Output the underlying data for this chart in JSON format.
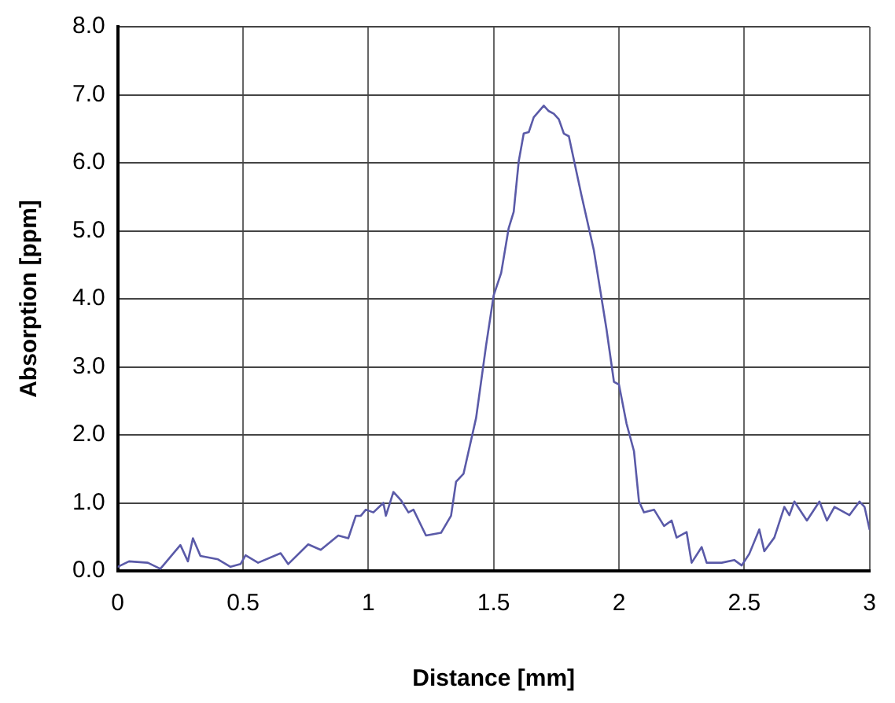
{
  "chart_data": {
    "type": "line",
    "xlabel": "Distance [mm]",
    "ylabel": "Absorption [ppm]",
    "xlim": [
      0,
      3
    ],
    "xticks": [
      0,
      0.5,
      1,
      1.5,
      2,
      2.5,
      3
    ],
    "ylim": [
      0,
      8
    ],
    "yticks": [
      {
        "value": 0,
        "label": "0.0"
      },
      {
        "value": 1,
        "label": "1.0"
      },
      {
        "value": 2,
        "label": "2.0"
      },
      {
        "value": 3,
        "label": "3.0"
      },
      {
        "value": 4,
        "label": "4.0"
      },
      {
        "value": 5,
        "label": "5.0"
      },
      {
        "value": 6,
        "label": "6.0"
      },
      {
        "value": 7,
        "label": "7.0"
      },
      {
        "value": 8,
        "label": "8.0"
      }
    ],
    "grid": true,
    "legend": false,
    "marker": "none",
    "line_style": "solid",
    "series": [
      {
        "color": "#5a5aa8",
        "x": [
          0,
          0.045,
          0.12,
          0.17,
          0.25,
          0.28,
          0.3,
          0.33,
          0.4,
          0.45,
          0.49,
          0.51,
          0.56,
          0.65,
          0.68,
          0.76,
          0.81,
          0.88,
          0.92,
          0.95,
          0.97,
          0.99,
          1.02,
          1.06,
          1.07,
          1.1,
          1.13,
          1.16,
          1.18,
          1.23,
          1.29,
          1.33,
          1.35,
          1.38,
          1.43,
          1.47,
          1.5,
          1.53,
          1.56,
          1.58,
          1.6,
          1.62,
          1.64,
          1.66,
          1.7,
          1.72,
          1.74,
          1.76,
          1.78,
          1.8,
          1.85,
          1.9,
          1.95,
          1.98,
          2.0,
          2.03,
          2.06,
          2.08,
          2.1,
          2.14,
          2.18,
          2.21,
          2.23,
          2.27,
          2.29,
          2.33,
          2.35,
          2.41,
          2.46,
          2.49,
          2.52,
          2.56,
          2.58,
          2.62,
          2.66,
          2.68,
          2.7,
          2.75,
          2.8,
          2.83,
          2.86,
          2.92,
          2.96,
          2.98,
          3.0
        ],
        "values": [
          0.06,
          0.14,
          0.12,
          0.03,
          0.38,
          0.14,
          0.48,
          0.22,
          0.17,
          0.06,
          0.1,
          0.23,
          0.12,
          0.26,
          0.1,
          0.39,
          0.31,
          0.52,
          0.48,
          0.81,
          0.81,
          0.9,
          0.86,
          1.0,
          0.81,
          1.16,
          1.04,
          0.86,
          0.9,
          0.52,
          0.56,
          0.81,
          1.31,
          1.43,
          2.25,
          3.32,
          4.05,
          4.38,
          5.04,
          5.28,
          6.02,
          6.43,
          6.45,
          6.67,
          6.84,
          6.76,
          6.72,
          6.64,
          6.43,
          6.39,
          5.53,
          4.71,
          3.56,
          2.78,
          2.74,
          2.17,
          1.76,
          1.02,
          0.86,
          0.9,
          0.66,
          0.74,
          0.49,
          0.57,
          0.12,
          0.35,
          0.12,
          0.12,
          0.16,
          0.08,
          0.25,
          0.61,
          0.29,
          0.49,
          0.94,
          0.82,
          1.02,
          0.74,
          1.02,
          0.74,
          0.94,
          0.82,
          1.02,
          0.94,
          0.61
        ]
      }
    ]
  }
}
